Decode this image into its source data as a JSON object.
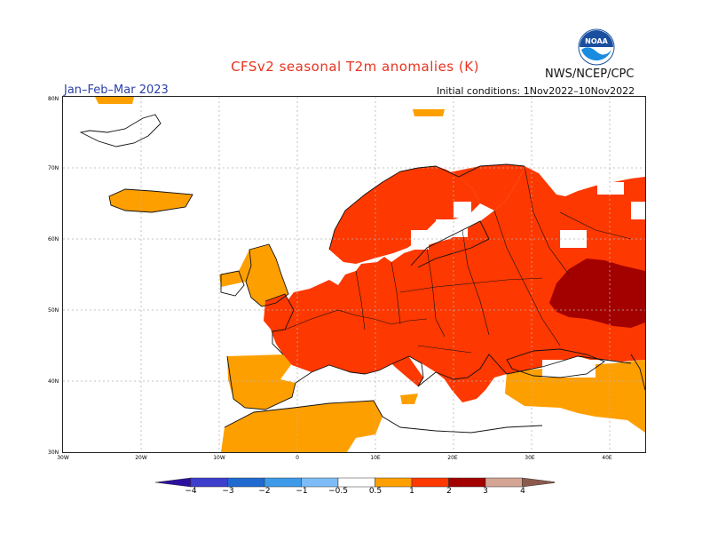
{
  "title": "CFSv2 seasonal T2m anomalies (K)",
  "agency": "NWS/NCEP/CPC",
  "logo_text": "NOAA",
  "season": "Jan–Feb–Mar 2023",
  "initial_conditions": "Initial conditions: 1Nov2022–10Nov2022",
  "lat_labels": [
    "80N",
    "70N",
    "60N",
    "50N",
    "40N",
    "30N"
  ],
  "lon_labels": [
    "30W",
    "20W",
    "10W",
    "0",
    "10E",
    "20E",
    "30E",
    "40E"
  ],
  "legend": {
    "labels": [
      "−4",
      "−3",
      "−2",
      "−1",
      "−0.5",
      "0.5",
      "1",
      "2",
      "3",
      "4"
    ],
    "colors": [
      "#2d10a0",
      "#3d3ecc",
      "#1f69d1",
      "#3d9be9",
      "#7dbcf6",
      "#ffffff",
      "#fe9f00",
      "#fd3800",
      "#a30000",
      "#d4a595",
      "#8c5a4d"
    ]
  },
  "anomaly_colors": {
    "0.5-1": "#fe9f00",
    "1-2": "#fd3800",
    "2-3": "#a30000"
  }
}
